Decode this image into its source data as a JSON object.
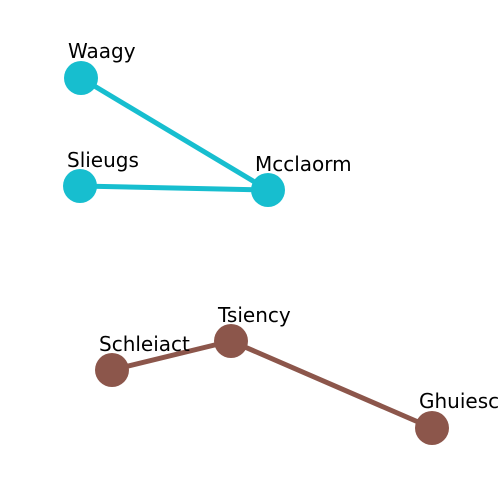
{
  "graph": {
    "groups": [
      {
        "id": "cyan",
        "color": "#17becf"
      },
      {
        "id": "brown",
        "color": "#8c564b"
      }
    ],
    "nodes": [
      {
        "id": "waagy",
        "label": "Waagy",
        "group": "cyan"
      },
      {
        "id": "slieugs",
        "label": "Slieugs",
        "group": "cyan"
      },
      {
        "id": "mcclaorm",
        "label": "Mcclaorm",
        "group": "cyan"
      },
      {
        "id": "tsiency",
        "label": "Tsiency",
        "group": "brown"
      },
      {
        "id": "schleiact",
        "label": "Schleiact",
        "group": "brown"
      },
      {
        "id": "ghuiesc",
        "label": "Ghuiesc",
        "group": "brown"
      }
    ],
    "edges": [
      {
        "from": "waagy",
        "to": "mcclaorm",
        "group": "cyan"
      },
      {
        "from": "slieugs",
        "to": "mcclaorm",
        "group": "cyan"
      },
      {
        "from": "schleiact",
        "to": "tsiency",
        "group": "brown"
      },
      {
        "from": "tsiency",
        "to": "ghuiesc",
        "group": "brown"
      }
    ]
  }
}
